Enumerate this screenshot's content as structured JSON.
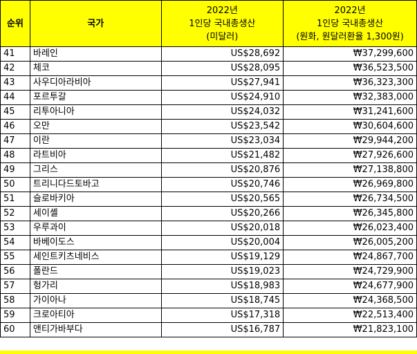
{
  "header": {
    "rank": "순위",
    "country": "국가",
    "usd_line1": "2022년",
    "usd_line2": "1인당 국내총생산",
    "usd_line3": "(미달러)",
    "krw_line1": "2022년",
    "krw_line2": "1인당 국내총생산",
    "krw_line3": "(원화, 원달러환율 1,300원)"
  },
  "rows": [
    {
      "rank": "41",
      "country": "바레인",
      "usd": "US$28,692",
      "krw": "₩37,299,600"
    },
    {
      "rank": "42",
      "country": "체코",
      "usd": "US$28,095",
      "krw": "₩36,523,500"
    },
    {
      "rank": "43",
      "country": "사우디아라비아",
      "usd": "US$27,941",
      "krw": "₩36,323,300"
    },
    {
      "rank": "44",
      "country": "포르투갈",
      "usd": "US$24,910",
      "krw": "₩32,383,000"
    },
    {
      "rank": "45",
      "country": "리투아니아",
      "usd": "US$24,032",
      "krw": "₩31,241,600"
    },
    {
      "rank": "46",
      "country": "오만",
      "usd": "US$23,542",
      "krw": "₩30,604,600"
    },
    {
      "rank": "47",
      "country": "이란",
      "usd": "US$23,034",
      "krw": "₩29,944,200"
    },
    {
      "rank": "48",
      "country": "라트비아",
      "usd": "US$21,482",
      "krw": "₩27,926,600"
    },
    {
      "rank": "49",
      "country": "그리스",
      "usd": "US$20,876",
      "krw": "₩27,138,800"
    },
    {
      "rank": "50",
      "country": "트리니다드토바고",
      "usd": "US$20,746",
      "krw": "₩26,969,800"
    },
    {
      "rank": "51",
      "country": "슬로바키아",
      "usd": "US$20,565",
      "krw": "₩26,734,500"
    },
    {
      "rank": "52",
      "country": "세이셸",
      "usd": "US$20,266",
      "krw": "₩26,345,800"
    },
    {
      "rank": "53",
      "country": "우루과이",
      "usd": "US$20,018",
      "krw": "₩26,023,400"
    },
    {
      "rank": "54",
      "country": "바베이도스",
      "usd": "US$20,004",
      "krw": "₩26,005,200"
    },
    {
      "rank": "55",
      "country": "세인트키츠네비스",
      "usd": "US$19,129",
      "krw": "₩24,867,700"
    },
    {
      "rank": "56",
      "country": "폴란드",
      "usd": "US$19,023",
      "krw": "₩24,729,900"
    },
    {
      "rank": "57",
      "country": "헝가리",
      "usd": "US$18,983",
      "krw": "₩24,677,900"
    },
    {
      "rank": "58",
      "country": "가이아나",
      "usd": "US$18,745",
      "krw": "₩24,368,500"
    },
    {
      "rank": "59",
      "country": "크로아티아",
      "usd": "US$17,318",
      "krw": "₩22,513,400"
    },
    {
      "rank": "60",
      "country": "앤티가바부다",
      "usd": "US$16,787",
      "krw": "₩21,823,100"
    }
  ],
  "colors": {
    "header_bg": "#FFFF00",
    "border": "#000000"
  }
}
